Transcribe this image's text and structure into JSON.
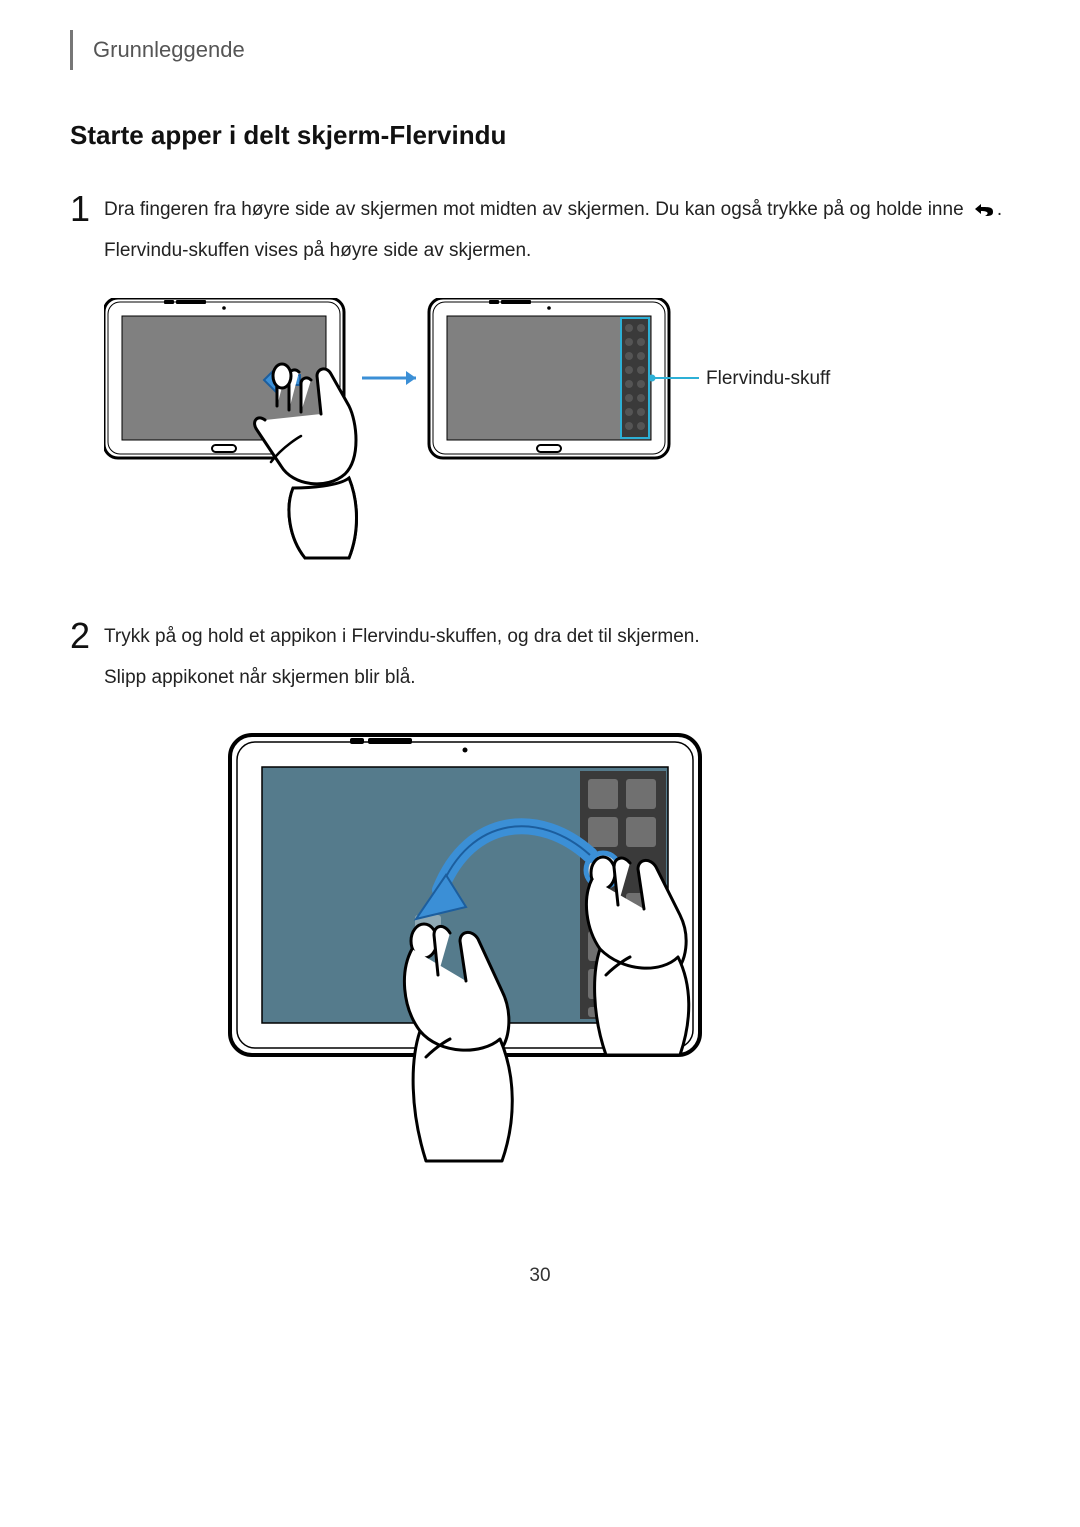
{
  "chapter": "Grunnleggende",
  "section_title": "Starte apper i delt skjerm-Flervindu",
  "steps": [
    {
      "num": "1",
      "paragraphs": [
        "Dra fingeren fra høyre side av skjermen mot midten av skjermen. Du kan også trykke på og holde inne {BACK_ICON}.",
        "Flervindu-skuffen vises på høyre side av skjermen."
      ]
    },
    {
      "num": "2",
      "paragraphs": [
        "Trykk på og hold et appikon i Flervindu-skuffen, og dra det til skjermen.",
        "Slipp appikonet når skjermen blir blå."
      ]
    }
  ],
  "callout_label": "Flervindu-skuff",
  "page_number": "30",
  "colors": {
    "screen_gray": "#808080",
    "screen_blue": "#557b8c",
    "tray_dark": "#3a3a3a",
    "arrow_blue": "#3b8fd6",
    "arrow_blue_stroke": "#1c5e9e",
    "callout_blue": "#2db0d6",
    "device_stroke": "#000",
    "dot_fill": "#555"
  }
}
